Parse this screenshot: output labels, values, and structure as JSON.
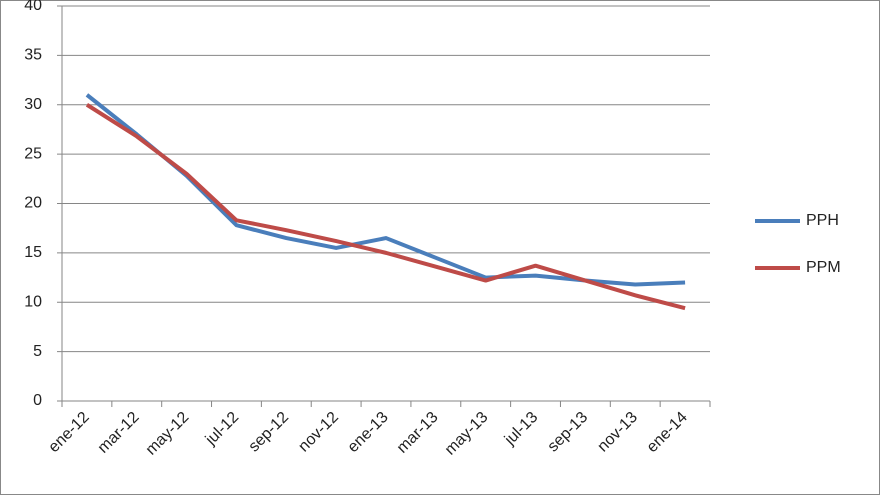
{
  "chart_data": {
    "type": "line",
    "categories": [
      "ene-12",
      "mar-12",
      "may-12",
      "jul-12",
      "sep-12",
      "nov-12",
      "ene-13",
      "mar-13",
      "may-13",
      "jul-13",
      "sep-13",
      "nov-13",
      "ene-14"
    ],
    "series": [
      {
        "name": "PPH",
        "color": "#4a7ebb",
        "values": [
          31,
          27,
          22.8,
          17.8,
          16.5,
          15.5,
          16.5,
          14.5,
          12.5,
          12.7,
          12.2,
          11.8,
          12
        ]
      },
      {
        "name": "PPM",
        "color": "#be4b48",
        "values": [
          30,
          26.8,
          23,
          18.3,
          17.3,
          16.2,
          15,
          13.6,
          12.2,
          13.7,
          12.2,
          10.7,
          9.4
        ]
      }
    ],
    "ylim": [
      0,
      40
    ],
    "yticks": [
      0,
      5,
      10,
      15,
      20,
      25,
      30,
      35,
      40
    ],
    "grid": true,
    "legend": "right"
  }
}
